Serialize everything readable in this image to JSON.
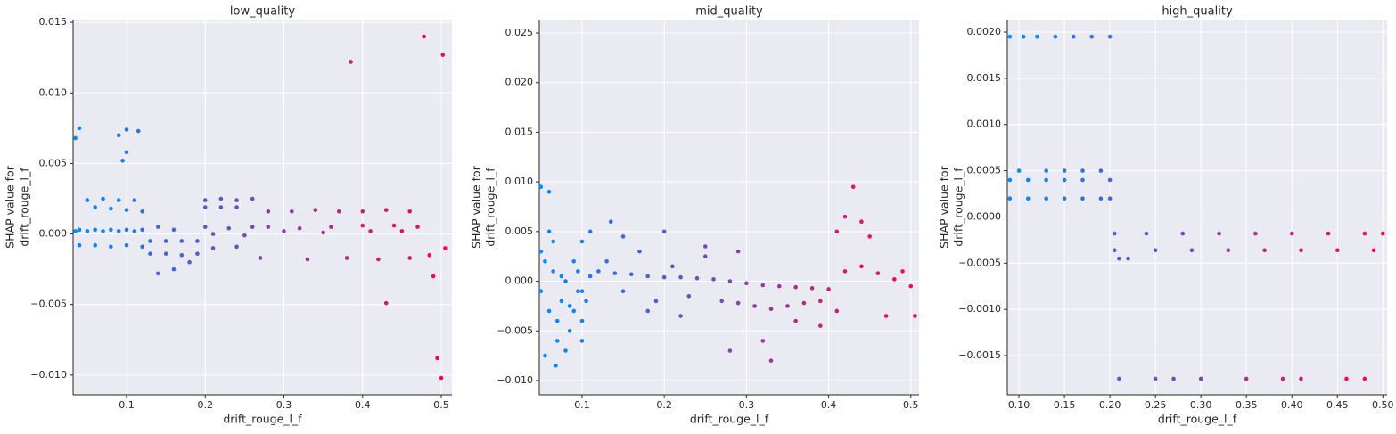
{
  "chart_data": [
    {
      "type": "scatter",
      "title": "low_quality",
      "xlabel": "drift_rouge_l_f",
      "ylabel": [
        "SHAP value for",
        "drift_rouge_l_f"
      ],
      "color_range": [
        "#008bfb",
        "#ff0052"
      ],
      "grid": true,
      "xlim": [
        0.032,
        0.5136
      ],
      "ylim": [
        -0.0114,
        0.0152
      ],
      "xticks": [
        0.1,
        0.2,
        0.3,
        0.4,
        0.5
      ],
      "yticks": [
        {
          "value": -0.01,
          "label": "−0.010"
        },
        {
          "value": -0.005,
          "label": "−0.005"
        },
        {
          "value": 0,
          "label": "0.000"
        },
        {
          "value": 0.005,
          "label": "0.005"
        },
        {
          "value": 0.01,
          "label": "0.010"
        },
        {
          "value": 0.015,
          "label": "0.015"
        }
      ],
      "x": [
        0.035,
        0.04,
        0.05,
        0.06,
        0.07,
        0.08,
        0.09,
        0.1,
        0.11,
        0.12,
        0.04,
        0.06,
        0.08,
        0.1,
        0.12,
        0.05,
        0.07,
        0.09,
        0.11,
        0.06,
        0.08,
        0.1,
        0.12,
        0.035,
        0.04,
        0.09,
        0.095,
        0.1,
        0.1,
        0.115,
        0.13,
        0.15,
        0.17,
        0.19,
        0.13,
        0.15,
        0.17,
        0.19,
        0.14,
        0.16,
        0.18,
        0.14,
        0.16,
        0.2,
        0.22,
        0.24,
        0.26,
        0.2,
        0.22,
        0.24,
        0.2,
        0.23,
        0.26,
        0.21,
        0.25,
        0.21,
        0.24,
        0.28,
        0.31,
        0.34,
        0.37,
        0.4,
        0.43,
        0.46,
        0.28,
        0.32,
        0.36,
        0.4,
        0.44,
        0.47,
        0.3,
        0.35,
        0.41,
        0.45,
        0.27,
        0.33,
        0.38,
        0.42,
        0.46,
        0.385,
        0.478,
        0.502,
        0.43,
        0.495,
        0.5,
        0.49,
        0.505,
        0.485
      ],
      "values": [
        0.0002,
        0.0003,
        0.0002,
        0.0003,
        0.0002,
        0.0003,
        0.0002,
        0.0003,
        0.0002,
        0.0003,
        -0.0008,
        -0.0008,
        -0.0009,
        -0.0008,
        -0.0009,
        0.0024,
        0.0025,
        0.0024,
        0.0024,
        0.0019,
        0.0018,
        0.0017,
        0.0016,
        0.0068,
        0.0075,
        0.007,
        0.0052,
        0.0074,
        0.0058,
        0.0073,
        -0.0005,
        -0.0005,
        -0.0005,
        -0.0005,
        -0.0014,
        -0.0014,
        -0.0015,
        -0.0014,
        -0.0028,
        -0.0025,
        -0.002,
        0.0005,
        0.0003,
        0.0024,
        0.0025,
        0.0024,
        0.0025,
        0.0019,
        0.0019,
        0.0019,
        0.0005,
        0.0004,
        0.0005,
        0.0,
        -0.0001,
        -0.001,
        -0.0009,
        0.0016,
        0.0016,
        0.0017,
        0.0016,
        0.0016,
        0.0017,
        0.0016,
        0.0005,
        0.0004,
        0.0005,
        0.0006,
        0.0006,
        0.0005,
        0.0002,
        0.0001,
        0.0002,
        0.0002,
        -0.0017,
        -0.0018,
        -0.0017,
        -0.0018,
        -0.0017,
        0.0122,
        0.014,
        0.0127,
        -0.0049,
        -0.0088,
        -0.0102,
        -0.003,
        -0.001,
        -0.0015
      ]
    },
    {
      "type": "scatter",
      "title": "mid_quality",
      "xlabel": "drift_rouge_l_f",
      "ylabel": [
        "SHAP value for",
        "drift_rouge_l_f"
      ],
      "color_range": [
        "#008bfb",
        "#ff0052"
      ],
      "grid": true,
      "xlim": [
        0.048,
        0.51
      ],
      "ylim": [
        -0.01144,
        0.02635
      ],
      "xticks": [
        0.1,
        0.2,
        0.3,
        0.4,
        0.5
      ],
      "yticks": [
        {
          "value": -0.01,
          "label": "−0.010"
        },
        {
          "value": -0.005,
          "label": "−0.005"
        },
        {
          "value": 0,
          "label": "0.000"
        },
        {
          "value": 0.005,
          "label": "0.005"
        },
        {
          "value": 0.01,
          "label": "0.010"
        },
        {
          "value": 0.015,
          "label": "0.015"
        },
        {
          "value": 0.02,
          "label": "0.020"
        },
        {
          "value": 0.025,
          "label": "0.025"
        }
      ],
      "x": [
        0.05,
        0.055,
        0.06,
        0.065,
        0.07,
        0.075,
        0.08,
        0.085,
        0.09,
        0.095,
        0.1,
        0.105,
        0.05,
        0.06,
        0.07,
        0.08,
        0.09,
        0.1,
        0.11,
        0.055,
        0.065,
        0.075,
        0.085,
        0.095,
        0.1,
        0.05,
        0.06,
        0.068,
        0.1,
        0.11,
        0.135,
        0.12,
        0.14,
        0.16,
        0.18,
        0.2,
        0.22,
        0.24,
        0.26,
        0.28,
        0.3,
        0.32,
        0.34,
        0.36,
        0.38,
        0.4,
        0.13,
        0.15,
        0.17,
        0.19,
        0.21,
        0.23,
        0.25,
        0.15,
        0.18,
        0.2,
        0.22,
        0.25,
        0.29,
        0.27,
        0.29,
        0.31,
        0.33,
        0.35,
        0.37,
        0.39,
        0.28,
        0.32,
        0.36,
        0.39,
        0.33,
        0.41,
        0.42,
        0.43,
        0.44,
        0.45,
        0.42,
        0.44,
        0.46,
        0.48,
        0.5,
        0.41,
        0.47,
        0.49,
        0.505
      ],
      "values": [
        -0.001,
        0.002,
        -0.003,
        0.001,
        -0.004,
        -0.002,
        0.0,
        -0.005,
        -0.003,
        -0.001,
        -0.006,
        -0.002,
        0.003,
        0.005,
        -0.006,
        -0.007,
        0.002,
        -0.004,
        0.0005,
        -0.0075,
        0.004,
        0.0005,
        -0.0025,
        0.001,
        -0.001,
        0.0095,
        0.009,
        -0.0085,
        0.004,
        0.005,
        0.006,
        0.001,
        0.0008,
        0.0007,
        0.0005,
        0.0004,
        0.0004,
        0.0003,
        0.0002,
        0.0,
        -0.0002,
        -0.0004,
        -0.0005,
        -0.0006,
        -0.0007,
        -0.0008,
        0.002,
        -0.001,
        0.003,
        -0.002,
        0.0015,
        -0.0015,
        0.0025,
        0.0045,
        -0.003,
        0.005,
        -0.0035,
        0.0035,
        0.003,
        -0.002,
        -0.0022,
        -0.0025,
        -0.0028,
        -0.0025,
        -0.0022,
        -0.002,
        -0.007,
        -0.006,
        -0.004,
        -0.0045,
        -0.008,
        0.005,
        0.0065,
        0.0095,
        0.006,
        0.0045,
        0.001,
        0.0015,
        0.0008,
        0.0002,
        -0.0005,
        -0.003,
        -0.0035,
        0.001,
        -0.0035
      ]
    },
    {
      "type": "scatter",
      "title": "high_quality",
      "xlabel": "drift_rouge_l_f",
      "ylabel": [
        "SHAP value for",
        "drift_rouge_l_f"
      ],
      "color_range": [
        "#008bfb",
        "#ff0052"
      ],
      "grid": true,
      "xlim": [
        0.0872,
        0.5046
      ],
      "ylim": [
        -0.001924,
        0.002135
      ],
      "xticks": [
        {
          "value": 0.1,
          "label": "0.10"
        },
        {
          "value": 0.15,
          "label": "0.15"
        },
        {
          "value": 0.2,
          "label": "0.20"
        },
        {
          "value": 0.25,
          "label": "0.25"
        },
        {
          "value": 0.3,
          "label": "0.30"
        },
        {
          "value": 0.35,
          "label": "0.35"
        },
        {
          "value": 0.4,
          "label": "0.40"
        },
        {
          "value": 0.45,
          "label": "0.45"
        },
        {
          "value": 0.5,
          "label": "0.50"
        }
      ],
      "yticks": [
        {
          "value": -0.0015,
          "label": "−0.0015"
        },
        {
          "value": -0.001,
          "label": "−0.0010"
        },
        {
          "value": -0.0005,
          "label": "−0.0005"
        },
        {
          "value": 0,
          "label": "0.0000"
        },
        {
          "value": 0.0005,
          "label": "0.0005"
        },
        {
          "value": 0.001,
          "label": "0.0010"
        },
        {
          "value": 0.0015,
          "label": "0.0015"
        },
        {
          "value": 0.002,
          "label": "0.0020"
        }
      ],
      "x": [
        0.09,
        0.105,
        0.12,
        0.14,
        0.16,
        0.18,
        0.2,
        0.1,
        0.13,
        0.15,
        0.17,
        0.19,
        0.09,
        0.11,
        0.13,
        0.15,
        0.17,
        0.2,
        0.09,
        0.11,
        0.13,
        0.15,
        0.17,
        0.19,
        0.2,
        0.205,
        0.24,
        0.28,
        0.32,
        0.36,
        0.4,
        0.44,
        0.48,
        0.5,
        0.205,
        0.25,
        0.29,
        0.33,
        0.37,
        0.41,
        0.45,
        0.49,
        0.21,
        0.25,
        0.27,
        0.3,
        0.35,
        0.39,
        0.41,
        0.46,
        0.48,
        0.21,
        0.22
      ],
      "values": [
        0.00195,
        0.00195,
        0.00195,
        0.00195,
        0.00195,
        0.00195,
        0.00195,
        0.0005,
        0.0005,
        0.0005,
        0.0005,
        0.0005,
        0.0004,
        0.0004,
        0.0004,
        0.0004,
        0.0004,
        0.0004,
        0.0002,
        0.0002,
        0.0002,
        0.0002,
        0.0002,
        0.0002,
        0.0002,
        -0.00018,
        -0.00018,
        -0.00018,
        -0.00018,
        -0.00018,
        -0.00018,
        -0.00018,
        -0.00018,
        -0.00018,
        -0.00036,
        -0.00036,
        -0.00036,
        -0.00036,
        -0.00036,
        -0.00036,
        -0.00036,
        -0.00036,
        -0.00175,
        -0.00175,
        -0.00175,
        -0.00175,
        -0.00175,
        -0.00175,
        -0.00175,
        -0.00175,
        -0.00175,
        -0.00045,
        -0.00045
      ]
    }
  ]
}
